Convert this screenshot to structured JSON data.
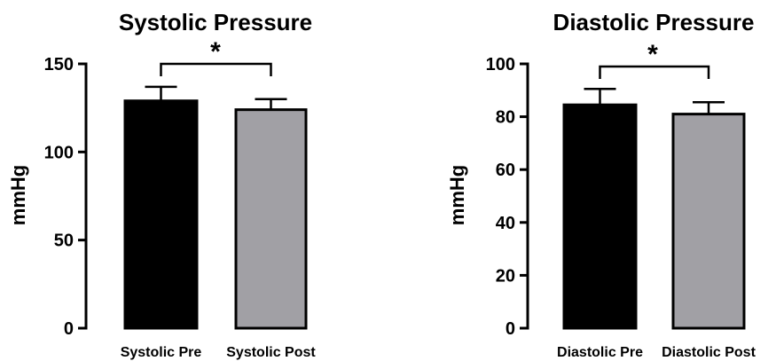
{
  "chart_data": [
    {
      "type": "bar",
      "title": "Systolic Pressure",
      "xlabel": "",
      "ylabel": "mmHg",
      "categories": [
        "Systolic Pre",
        "Systolic Post"
      ],
      "values": [
        129,
        124
      ],
      "errors": [
        8,
        6
      ],
      "ylim": [
        0,
        150
      ],
      "yticks": [
        "0",
        "50",
        "100",
        "150"
      ],
      "bar_colors": [
        "#000000",
        "#a1a0a5"
      ],
      "significance": {
        "from": 0,
        "to": 1,
        "label": "*"
      },
      "grid": false
    },
    {
      "type": "bar",
      "title": "Diastolic Pressure",
      "xlabel": "",
      "ylabel": "mmHg",
      "categories": [
        "Diastolic Pre",
        "Diastolic Post"
      ],
      "values": [
        84.5,
        81
      ],
      "errors": [
        6,
        4.5
      ],
      "ylim": [
        0,
        100
      ],
      "yticks": [
        "0",
        "20",
        "40",
        "60",
        "80",
        "100"
      ],
      "bar_colors": [
        "#000000",
        "#a1a0a5"
      ],
      "significance": {
        "from": 0,
        "to": 1,
        "label": "*"
      },
      "grid": false
    }
  ]
}
